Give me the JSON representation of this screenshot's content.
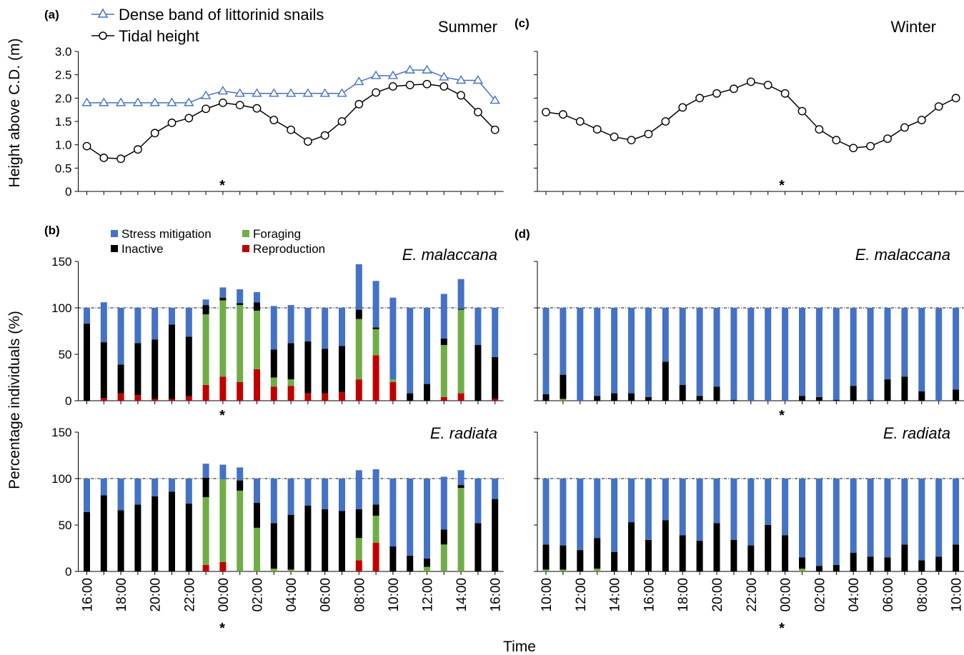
{
  "colors": {
    "stress": "#4472c4",
    "foraging": "#70ad47",
    "inactive": "#000000",
    "reproduction": "#c00000",
    "snail_line": "#4472c4",
    "tidal_line": "#000000"
  },
  "axis_titles": {
    "height": "Height above C.D. (m)",
    "percentage": "Percentage individuals (%)",
    "time": "Time"
  },
  "asterisk": "*",
  "chart_data": [
    {
      "panel": "(a)",
      "season": "Summer",
      "type": "line",
      "ylim": [
        0,
        3.0
      ],
      "yticks": [
        "0",
        "0.5",
        "1.0",
        "1.5",
        "2.0",
        "2.5",
        "3.0"
      ],
      "legend": [
        "Dense band of littorinid snails",
        "Tidal height"
      ],
      "legend_placement": "top-left",
      "series": [
        {
          "name": "Dense band of littorinid snails",
          "marker": "triangle",
          "values": [
            1.9,
            1.9,
            1.9,
            1.9,
            1.9,
            1.9,
            1.9,
            2.05,
            2.15,
            2.1,
            2.1,
            2.1,
            2.1,
            2.1,
            2.1,
            2.1,
            2.35,
            2.48,
            2.48,
            2.6,
            2.6,
            2.45,
            2.38,
            2.38,
            1.95
          ]
        },
        {
          "name": "Tidal height",
          "marker": "circle",
          "values": [
            0.97,
            0.72,
            0.7,
            0.9,
            1.25,
            1.47,
            1.57,
            1.77,
            1.9,
            1.85,
            1.78,
            1.53,
            1.32,
            1.07,
            1.2,
            1.5,
            1.87,
            2.12,
            2.25,
            2.28,
            2.3,
            2.25,
            2.06,
            1.7,
            1.32
          ]
        }
      ]
    },
    {
      "panel": "(c)",
      "season": "Winter",
      "type": "line",
      "ylim": [
        0,
        3.0
      ],
      "series": [
        {
          "name": "Tidal height",
          "marker": "circle",
          "values": [
            1.7,
            1.65,
            1.5,
            1.33,
            1.17,
            1.1,
            1.23,
            1.5,
            1.8,
            2.0,
            2.1,
            2.2,
            2.35,
            2.28,
            2.1,
            1.72,
            1.33,
            1.1,
            0.93,
            0.97,
            1.13,
            1.37,
            1.53,
            1.82,
            2.0
          ]
        }
      ]
    },
    {
      "panel": "(b)",
      "season": "Summer",
      "species": "E. malaccana",
      "type": "bar",
      "stacked": true,
      "ylim": [
        0,
        150
      ],
      "yticks": [
        "0",
        "50",
        "100",
        "150"
      ],
      "reference_line": 100,
      "legend": [
        "Stress mitigation",
        "Foraging",
        "Inactive",
        "Reproduction"
      ],
      "x_tick_labels": [
        "16:00",
        "18:00",
        "20:00",
        "22:00",
        "00:00",
        "02:00",
        "04:00",
        "06:00",
        "08:00",
        "10:00",
        "12:00",
        "14:00",
        "16:00"
      ],
      "series": [
        {
          "name": "Reproduction",
          "values": [
            0,
            3,
            8,
            6,
            2,
            2,
            5,
            17,
            26,
            20,
            34,
            15,
            16,
            8,
            8,
            9,
            23,
            49,
            20,
            0,
            0,
            4,
            8,
            0,
            2
          ]
        },
        {
          "name": "Foraging",
          "values": [
            0,
            0,
            0,
            0,
            0,
            0,
            0,
            76,
            82,
            83,
            63,
            10,
            7,
            0,
            0,
            0,
            65,
            28,
            3,
            0,
            0,
            56,
            90,
            0,
            0
          ]
        },
        {
          "name": "Inactive",
          "values": [
            83,
            60,
            31,
            56,
            64,
            80,
            64,
            10,
            3,
            2,
            9,
            30,
            39,
            56,
            48,
            50,
            10,
            2,
            0,
            8,
            18,
            7,
            1,
            60,
            45
          ]
        },
        {
          "name": "Stress mitigation",
          "values": [
            17,
            43,
            61,
            38,
            34,
            18,
            31,
            6,
            11,
            15,
            11,
            47,
            41,
            36,
            44,
            41,
            49,
            50,
            88,
            92,
            82,
            48,
            32,
            40,
            53
          ]
        }
      ]
    },
    {
      "panel": "(d)",
      "season": "Winter",
      "species": "E. malaccana",
      "type": "bar",
      "stacked": true,
      "ylim": [
        0,
        150
      ],
      "reference_line": 100,
      "x_tick_labels": [
        "10:00",
        "12:00",
        "14:00",
        "16:00",
        "18:00",
        "20:00",
        "22:00",
        "00:00",
        "02:00",
        "04:00",
        "06:00",
        "08:00",
        "10:00"
      ],
      "series": [
        {
          "name": "Foraging",
          "values": [
            0,
            2,
            0,
            0,
            0,
            0,
            0,
            0,
            0,
            0,
            0,
            0,
            0,
            0,
            0,
            0,
            0,
            0,
            0,
            0,
            0,
            0,
            0,
            0,
            0
          ]
        },
        {
          "name": "Inactive",
          "values": [
            7,
            26,
            0,
            5,
            8,
            8,
            4,
            42,
            17,
            5,
            15,
            1,
            0,
            0,
            0,
            5,
            4,
            1,
            16,
            1,
            23,
            26,
            10,
            0,
            12
          ]
        },
        {
          "name": "Stress mitigation",
          "values": [
            93,
            72,
            100,
            95,
            92,
            92,
            96,
            58,
            83,
            95,
            85,
            99,
            100,
            100,
            100,
            95,
            96,
            99,
            84,
            99,
            77,
            74,
            90,
            100,
            88
          ]
        }
      ]
    },
    {
      "panel": "",
      "season": "Summer",
      "species": "E. radiata",
      "type": "bar",
      "stacked": true,
      "ylim": [
        0,
        150
      ],
      "yticks": [
        "0",
        "50",
        "100",
        "150"
      ],
      "reference_line": 100,
      "x_tick_labels": [
        "16:00",
        "18:00",
        "20:00",
        "22:00",
        "00:00",
        "02:00",
        "04:00",
        "06:00",
        "08:00",
        "10:00",
        "12:00",
        "14:00",
        "16:00"
      ],
      "series": [
        {
          "name": "Reproduction",
          "values": [
            0,
            0,
            0,
            0,
            0,
            0,
            0,
            7,
            10,
            0,
            0,
            0,
            0,
            0,
            0,
            0,
            12,
            31,
            0,
            0,
            0,
            0,
            0,
            0,
            0
          ]
        },
        {
          "name": "Foraging",
          "values": [
            0,
            0,
            0,
            0,
            0,
            0,
            0,
            73,
            89,
            87,
            47,
            3,
            2,
            0,
            0,
            0,
            24,
            29,
            0,
            0,
            5,
            29,
            90,
            0,
            0
          ]
        },
        {
          "name": "Inactive",
          "values": [
            64,
            82,
            66,
            72,
            81,
            86,
            73,
            21,
            0,
            11,
            27,
            49,
            59,
            71,
            67,
            65,
            31,
            12,
            27,
            17,
            9,
            16,
            3,
            52,
            78
          ]
        },
        {
          "name": "Stress mitigation",
          "values": [
            36,
            18,
            34,
            28,
            19,
            14,
            27,
            15,
            16,
            14,
            26,
            48,
            39,
            29,
            33,
            35,
            42,
            38,
            73,
            83,
            86,
            57,
            16,
            48,
            22
          ]
        }
      ]
    },
    {
      "panel": "",
      "season": "Winter",
      "species": "E. radiata",
      "type": "bar",
      "stacked": true,
      "ylim": [
        0,
        150
      ],
      "reference_line": 100,
      "x_tick_labels": [
        "10:00",
        "12:00",
        "14:00",
        "16:00",
        "18:00",
        "20:00",
        "22:00",
        "00:00",
        "02:00",
        "04:00",
        "06:00",
        "08:00",
        "10:00"
      ],
      "series": [
        {
          "name": "Foraging",
          "values": [
            2,
            2,
            0,
            3,
            0,
            0,
            0,
            0,
            0,
            0,
            0,
            0,
            0,
            0,
            0,
            3,
            0,
            0,
            0,
            0,
            0,
            0,
            0,
            0,
            0
          ]
        },
        {
          "name": "Inactive",
          "values": [
            27,
            26,
            23,
            33,
            21,
            53,
            34,
            55,
            39,
            33,
            52,
            34,
            28,
            50,
            39,
            12,
            6,
            7,
            20,
            16,
            15,
            29,
            12,
            16,
            29
          ]
        },
        {
          "name": "Stress mitigation",
          "values": [
            71,
            72,
            77,
            64,
            79,
            47,
            66,
            45,
            61,
            67,
            48,
            66,
            72,
            50,
            61,
            85,
            94,
            93,
            80,
            84,
            85,
            71,
            88,
            84,
            71
          ]
        }
      ]
    }
  ]
}
